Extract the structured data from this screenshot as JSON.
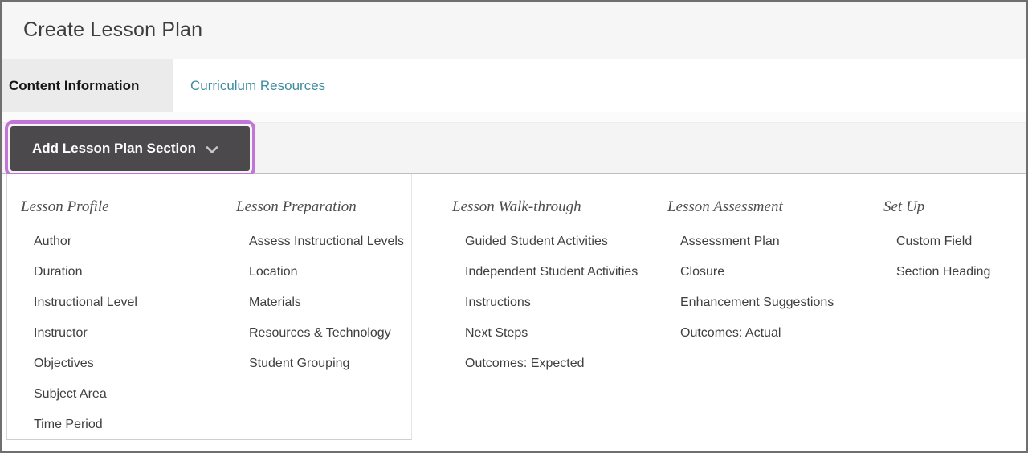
{
  "page": {
    "title": "Create Lesson Plan"
  },
  "tabs": [
    {
      "label": "Content Information",
      "active": true
    },
    {
      "label": "Curriculum Resources",
      "active": false
    }
  ],
  "action_bar": {
    "button_label": "Add Lesson Plan Section",
    "icon": "chevron-down-icon"
  },
  "menu": {
    "columns": [
      {
        "heading": "Lesson Profile",
        "items": [
          "Author",
          "Duration",
          "Instructional Level",
          "Instructor",
          "Objectives",
          "Subject Area",
          "Time Period"
        ]
      },
      {
        "heading": "Lesson Preparation",
        "items": [
          "Assess Instructional Levels",
          "Location",
          "Materials",
          "Resources & Technology",
          "Student Grouping"
        ]
      },
      {
        "heading": "Lesson Walk-through",
        "items": [
          "Guided Student Activities",
          "Independent Student Activities",
          "Instructions",
          "Next Steps",
          "Outcomes: Expected"
        ]
      },
      {
        "heading": "Lesson Assessment",
        "items": [
          "Assessment Plan",
          "Closure",
          "Enhancement Suggestions",
          "Outcomes: Actual"
        ]
      },
      {
        "heading": "Set Up",
        "items": [
          "Custom Field",
          "Section Heading"
        ]
      }
    ]
  },
  "colors": {
    "highlight_ring": "#c175d6",
    "button_background": "#4c494c",
    "link_teal": "#3f8ba0",
    "active_tab_background": "#ebebeb",
    "header_background": "#f6f6f6",
    "action_bar_background": "#f4f4f4"
  }
}
